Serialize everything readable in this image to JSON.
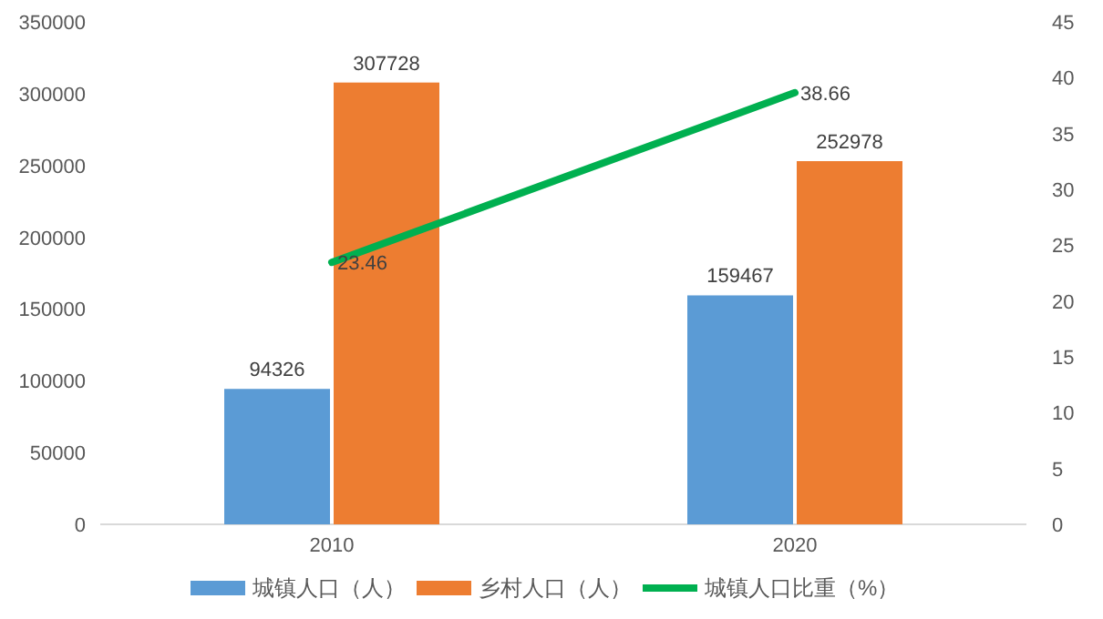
{
  "chart_data": {
    "type": "bar",
    "categories": [
      "2010",
      "2020"
    ],
    "series": [
      {
        "name": "城镇人口（人）",
        "color": "#5b9bd5",
        "values": [
          94326,
          159467
        ]
      },
      {
        "name": "乡村人口（人）",
        "color": "#ed7d31",
        "values": [
          307728,
          252978
        ]
      },
      {
        "name": "城镇人口比重（%）",
        "type": "line",
        "axis": "y2",
        "color": "#00b050",
        "values": [
          23.46,
          38.66
        ]
      }
    ],
    "ylim": [
      0,
      350000
    ],
    "yticks": [
      0,
      50000,
      100000,
      150000,
      200000,
      250000,
      300000,
      350000
    ],
    "y2lim": [
      0,
      45
    ],
    "y2ticks": [
      0,
      5,
      10,
      15,
      20,
      25,
      30,
      35,
      40,
      45
    ],
    "data_labels": true,
    "legend": "bottom"
  }
}
